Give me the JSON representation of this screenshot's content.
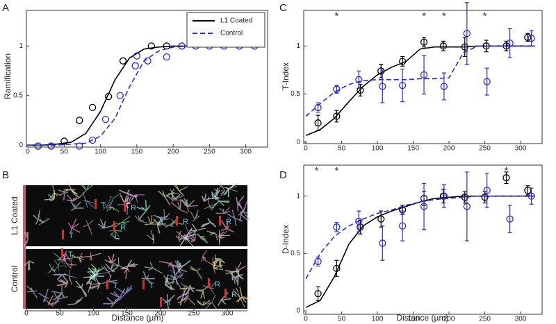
{
  "chart_data": [
    {
      "type": "scatter",
      "panel_label": "A",
      "ylabel": "Ramification",
      "xlim": [
        -2,
        330
      ],
      "ylim": [
        -0.02,
        1.36
      ],
      "xticks": [
        0,
        50,
        100,
        150,
        200,
        250,
        300
      ],
      "yticks": [
        0,
        0.5,
        1
      ],
      "legend": "upper right",
      "series": [
        {
          "name": "L1 Coated",
          "color": "#000000",
          "dashed": false,
          "x": [
            14,
            32,
            50,
            71,
            89,
            111,
            131,
            170,
            191,
            212,
            231,
            250,
            270,
            291,
            312
          ],
          "values": [
            -0.01,
            -0.01,
            0.04,
            0.25,
            0.38,
            0.49,
            0.85,
            1.0,
            1.0,
            1.0,
            1.0,
            1.0,
            1.0,
            1.0,
            1.0
          ],
          "fit_x": [
            0,
            20,
            40,
            60,
            80,
            100,
            120,
            140,
            160,
            180,
            200,
            220,
            240,
            260,
            280,
            300,
            320
          ],
          "fit_values": [
            0,
            0,
            0.01,
            0.03,
            0.12,
            0.34,
            0.66,
            0.88,
            0.97,
            0.99,
            1,
            1,
            1,
            1,
            1,
            1,
            1
          ]
        },
        {
          "name": "Control",
          "color": "#2b2bd4",
          "dashed": true,
          "x": [
            14,
            32,
            71,
            89,
            107,
            127,
            148,
            150,
            165,
            191,
            212,
            231,
            250,
            270,
            291,
            312
          ],
          "values": [
            -0.01,
            -0.01,
            -0.01,
            0.05,
            0.26,
            0.5,
            0.8,
            0.9,
            0.85,
            0.89,
            1.0,
            1.0,
            1.0,
            1.0,
            1.0,
            1.0
          ],
          "fit_x": [
            0,
            20,
            40,
            60,
            80,
            100,
            120,
            140,
            160,
            180,
            200,
            220,
            240,
            260,
            280,
            300,
            320
          ],
          "fit_values": [
            0,
            0,
            0,
            0.01,
            0.02,
            0.09,
            0.27,
            0.59,
            0.85,
            0.95,
            0.99,
            1,
            1,
            1,
            1,
            1,
            1
          ]
        }
      ]
    },
    {
      "type": "scatter",
      "panel_label": "C",
      "ylabel": "T-Index",
      "xlim": [
        -3,
        330
      ],
      "ylim": [
        -0.015,
        1.37
      ],
      "xticks": [
        0,
        50,
        100,
        150,
        200,
        250,
        300
      ],
      "yticks": [
        0,
        0.5,
        1
      ],
      "annotations": [
        {
          "x": 43,
          "text": "*"
        },
        {
          "x": 165,
          "text": "*"
        },
        {
          "x": 193,
          "text": "*"
        },
        {
          "x": 250,
          "text": "*"
        }
      ],
      "series": [
        {
          "color": "#000000",
          "dashed": false,
          "x": [
            17,
            43,
            76,
            105,
            135,
            165,
            192,
            222,
            252,
            280,
            310
          ],
          "values": [
            0.2,
            0.27,
            0.54,
            0.74,
            0.84,
            1.04,
            1.0,
            0.99,
            1.0,
            1.0,
            1.09
          ],
          "errors": [
            0.08,
            0.06,
            0.06,
            0.07,
            0.05,
            0.05,
            0.05,
            0.1,
            0.06,
            0.05,
            0.04
          ],
          "fit_x": [
            0,
            20,
            40,
            60,
            80,
            100,
            120,
            140,
            160,
            180,
            200,
            220,
            240,
            260,
            280,
            300,
            320
          ],
          "fit_values": [
            0.07,
            0.13,
            0.25,
            0.42,
            0.58,
            0.7,
            0.78,
            0.84,
            0.97,
            0.99,
            0.99,
            0.99,
            1,
            1,
            1,
            1,
            1
          ]
        },
        {
          "color": "#2b2bd4",
          "dashed": true,
          "x": [
            17,
            43,
            74,
            107,
            135,
            165,
            193,
            225,
            253,
            285,
            315
          ],
          "values": [
            0.36,
            0.55,
            0.65,
            0.58,
            0.59,
            0.7,
            0.58,
            1.13,
            0.63,
            1.03,
            1.08
          ],
          "errors": [
            0.05,
            0.04,
            0.09,
            0.17,
            0.17,
            0.2,
            0.14,
            0.32,
            0.14,
            0.15,
            0.08
          ],
          "fit_x": [
            0,
            20,
            40,
            60,
            80,
            100,
            120,
            140,
            160,
            180,
            200,
            220,
            240,
            260,
            280,
            300,
            320
          ],
          "fit_values": [
            0.27,
            0.4,
            0.52,
            0.6,
            0.64,
            0.65,
            0.65,
            0.65,
            0.66,
            0.66,
            0.67,
            0.93,
            1,
            1,
            1,
            1,
            1
          ]
        }
      ]
    },
    {
      "type": "scatter",
      "panel_label": "D",
      "ylabel": "D-Index",
      "xlabel": "Distance (µm)",
      "xlim": [
        -3,
        330
      ],
      "ylim": [
        -0.03,
        1.27
      ],
      "xticks": [
        0,
        50,
        100,
        150,
        200,
        250,
        300
      ],
      "yticks": [
        0,
        0.5,
        1
      ],
      "annotations": [
        {
          "x": 15,
          "text": "*"
        },
        {
          "x": 43,
          "text": "*"
        },
        {
          "x": 280,
          "text": "*"
        }
      ],
      "series": [
        {
          "color": "#000000",
          "dashed": false,
          "x": [
            17,
            43,
            76,
            105,
            135,
            165,
            192,
            222,
            250,
            280,
            310
          ],
          "values": [
            0.15,
            0.37,
            0.73,
            0.8,
            0.88,
            0.98,
            1.0,
            0.99,
            0.99,
            1.16,
            1.05
          ],
          "errors": [
            0.06,
            0.07,
            0.06,
            0.07,
            0.04,
            0.06,
            0.06,
            0.05,
            0.05,
            0.05,
            0.04
          ],
          "fit_x": [
            0,
            20,
            40,
            60,
            80,
            100,
            120,
            140,
            160,
            180,
            200,
            220,
            240,
            260,
            280,
            300,
            320
          ],
          "fit_values": [
            0.03,
            0.09,
            0.3,
            0.58,
            0.74,
            0.82,
            0.87,
            0.91,
            0.95,
            0.98,
            0.99,
            1,
            1,
            1,
            1,
            1,
            1
          ]
        },
        {
          "color": "#2b2bd4",
          "dashed": true,
          "x": [
            17,
            43,
            74,
            107,
            135,
            165,
            193,
            225,
            253,
            285,
            315
          ],
          "values": [
            0.43,
            0.73,
            0.78,
            0.59,
            0.74,
            0.91,
            1.0,
            0.91,
            1.05,
            0.8,
            1.0
          ],
          "errors": [
            0.04,
            0.04,
            0.09,
            0.15,
            0.13,
            0.2,
            0.1,
            0.3,
            0.15,
            0.12,
            0.07
          ],
          "fit_x": [
            0,
            20,
            40,
            60,
            80,
            100,
            120,
            140,
            160,
            180,
            200,
            220,
            240,
            260,
            280,
            300,
            320
          ],
          "fit_values": [
            0.28,
            0.5,
            0.65,
            0.74,
            0.8,
            0.85,
            0.88,
            0.92,
            0.95,
            0.97,
            0.98,
            0.99,
            1,
            1,
            1,
            1,
            1
          ]
        }
      ]
    }
  ],
  "panel_b": {
    "panel_label": "B",
    "xlabel": "Distance (µm)",
    "xlim": [
      -2,
      330
    ],
    "xticks": [
      0,
      50,
      100,
      150,
      200,
      250,
      300
    ],
    "top_name": "L1 Coated",
    "bottom_name": "Control",
    "top_labels": [
      "T",
      "T",
      "R",
      "R",
      "R",
      "R"
    ],
    "bottom_labels": [
      "T",
      "T",
      "T",
      "T",
      "R",
      "R"
    ]
  }
}
